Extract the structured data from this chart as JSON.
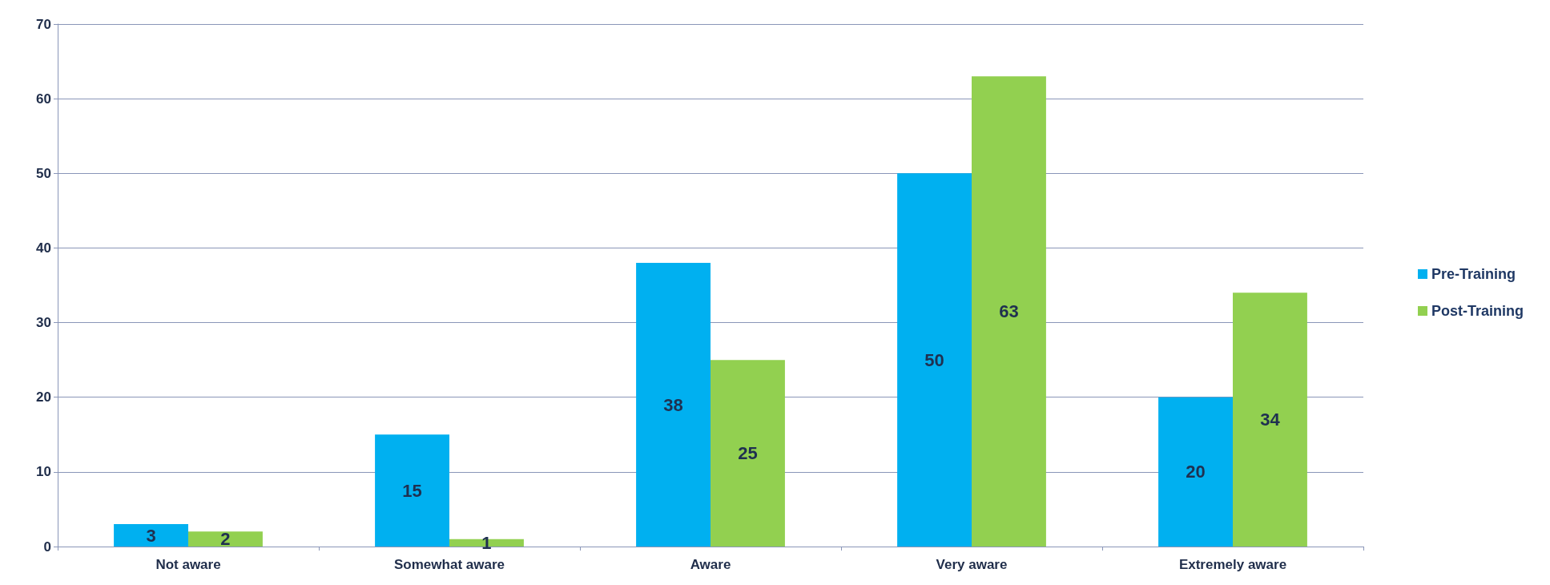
{
  "chart_data": {
    "type": "bar",
    "categories": [
      "Not aware",
      "Somewhat aware",
      "Aware",
      "Very aware",
      "Extremely aware"
    ],
    "series": [
      {
        "name": "Pre-Training",
        "color": "#00b0f0",
        "values": [
          3,
          15,
          38,
          50,
          20
        ]
      },
      {
        "name": "Post-Training",
        "color": "#92d050",
        "values": [
          2,
          1,
          25,
          63,
          34
        ]
      }
    ],
    "ylim": [
      0,
      70
    ],
    "yticks": [
      0,
      10,
      20,
      30,
      40,
      50,
      60,
      70
    ],
    "grid": "y",
    "legend": "right",
    "data_labels": true
  }
}
